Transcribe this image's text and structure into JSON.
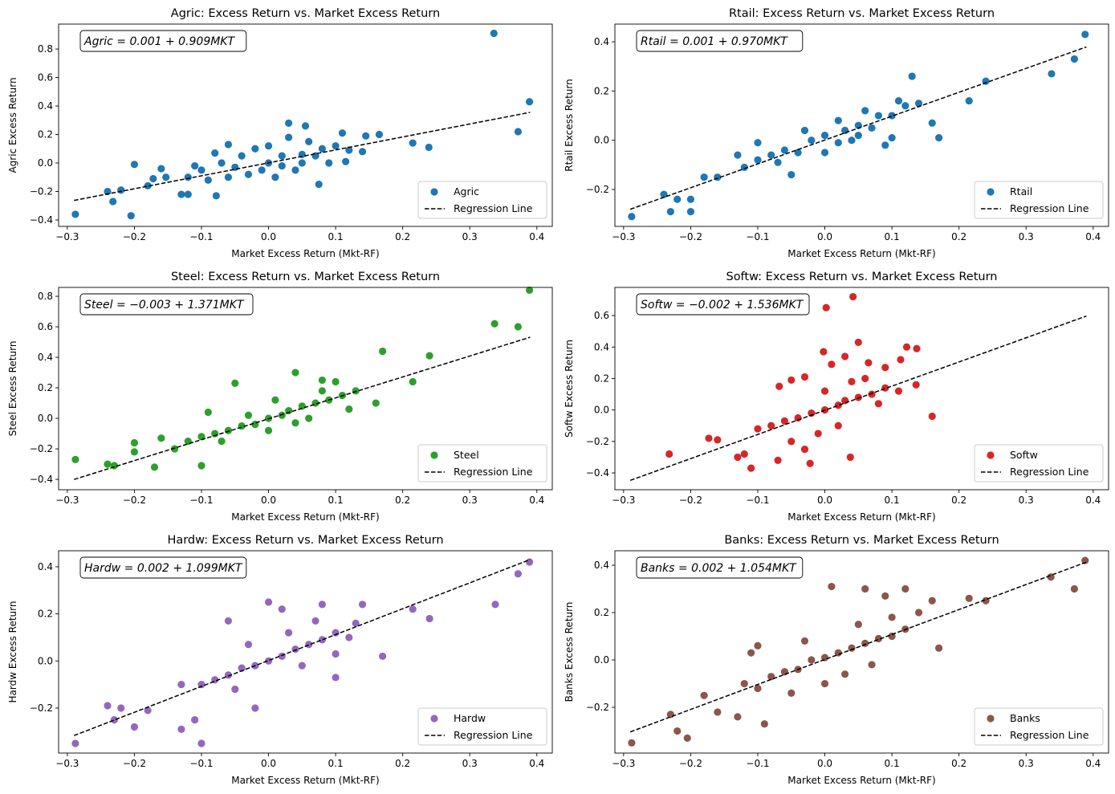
{
  "chart_data": [
    {
      "type": "scatter",
      "title": "Agric: Excess Return vs. Market Excess Return",
      "xlabel": "Market Excess Return (Mkt-RF)",
      "ylabel": "Agric Excess Return",
      "equation": "Agric = 0.001 + 0.909MKT",
      "series_name": "Agric",
      "line_name": "Regression Line",
      "color": "#1f77b4",
      "intercept": 0.001,
      "slope": 0.909,
      "xlim": [
        -0.313,
        0.423
      ],
      "ylim": [
        -0.445,
        0.975
      ],
      "xticks": [
        -0.3,
        -0.2,
        -0.1,
        0.0,
        0.1,
        0.2,
        0.3,
        0.4
      ],
      "yticks": [
        -0.4,
        -0.2,
        0.0,
        0.2,
        0.4,
        0.6,
        0.8
      ],
      "legend": "lower-right",
      "points": [
        [
          0.336,
          0.91
        ],
        [
          0.389,
          0.43
        ],
        [
          0.372,
          0.22
        ],
        [
          0.239,
          0.11
        ],
        [
          0.215,
          0.14
        ],
        [
          -0.288,
          -0.36
        ],
        [
          -0.205,
          -0.37
        ],
        [
          -0.232,
          -0.27
        ],
        [
          -0.24,
          -0.2
        ],
        [
          -0.22,
          -0.19
        ],
        [
          -0.2,
          -0.01
        ],
        [
          -0.18,
          -0.16
        ],
        [
          -0.172,
          -0.11
        ],
        [
          -0.16,
          -0.04
        ],
        [
          -0.153,
          -0.1
        ],
        [
          -0.13,
          -0.22
        ],
        [
          -0.12,
          -0.22
        ],
        [
          -0.078,
          -0.23
        ],
        [
          -0.06,
          0.13
        ],
        [
          -0.08,
          0.07
        ],
        [
          0.03,
          0.28
        ],
        [
          0.055,
          0.26
        ],
        [
          0.075,
          -0.15
        ],
        [
          0.115,
          0.01
        ],
        [
          0.145,
          0.19
        ],
        [
          0.165,
          0.2
        ],
        [
          0.11,
          0.21
        ],
        [
          0.14,
          0.08
        ],
        [
          -0.1,
          -0.05
        ],
        [
          -0.05,
          -0.03
        ],
        [
          0,
          0
        ],
        [
          0.02,
          0.05
        ],
        [
          0.05,
          0.06
        ],
        [
          0.08,
          0.1
        ],
        [
          -0.03,
          -0.08
        ],
        [
          0.04,
          -0.05
        ],
        [
          0.06,
          0.15
        ],
        [
          -0.02,
          0.1
        ],
        [
          0.01,
          -0.1
        ],
        [
          0.09,
          0.0
        ],
        [
          -0.12,
          -0.1
        ],
        [
          -0.09,
          -0.12
        ],
        [
          -0.07,
          0.0
        ],
        [
          -0.04,
          0.05
        ],
        [
          0.0,
          0.12
        ],
        [
          0.03,
          0.18
        ],
        [
          0.07,
          0.05
        ],
        [
          0.1,
          0.12
        ],
        [
          0.12,
          0.09
        ],
        [
          -0.01,
          -0.05
        ],
        [
          0.02,
          -0.02
        ],
        [
          0.05,
          0.0
        ],
        [
          -0.11,
          -0.02
        ],
        [
          -0.06,
          -0.1
        ]
      ]
    },
    {
      "type": "scatter",
      "title": "Rtail: Excess Return vs. Market Excess Return",
      "xlabel": "Market Excess Return (Mkt-RF)",
      "ylabel": "Rtail Excess Return",
      "equation": "Rtail = 0.001 + 0.970MKT",
      "series_name": "Rtail",
      "line_name": "Regression Line",
      "color": "#1f77b4",
      "intercept": 0.001,
      "slope": 0.97,
      "xlim": [
        -0.313,
        0.423
      ],
      "ylim": [
        -0.35,
        0.472
      ],
      "xticks": [
        -0.3,
        -0.2,
        -0.1,
        0.0,
        0.1,
        0.2,
        0.3,
        0.4
      ],
      "yticks": [
        -0.2,
        0.0,
        0.2,
        0.4
      ],
      "legend": "lower-right",
      "points": [
        [
          0.388,
          0.43
        ],
        [
          0.372,
          0.33
        ],
        [
          0.338,
          0.27
        ],
        [
          0.24,
          0.24
        ],
        [
          0.215,
          0.16
        ],
        [
          0.17,
          0.01
        ],
        [
          0.16,
          0.07
        ],
        [
          0.14,
          0.15
        ],
        [
          0.13,
          0.26
        ],
        [
          -0.288,
          -0.31
        ],
        [
          -0.24,
          -0.22
        ],
        [
          -0.23,
          -0.29
        ],
        [
          -0.22,
          -0.24
        ],
        [
          -0.2,
          -0.29
        ],
        [
          -0.2,
          -0.24
        ],
        [
          -0.18,
          -0.15
        ],
        [
          -0.16,
          -0.15
        ],
        [
          -0.13,
          -0.06
        ],
        [
          -0.1,
          -0.01
        ],
        [
          -0.05,
          -0.14
        ],
        [
          0.09,
          -0.02
        ],
        [
          0.1,
          0.01
        ],
        [
          -0.12,
          -0.11
        ],
        [
          -0.1,
          -0.08
        ],
        [
          -0.08,
          -0.06
        ],
        [
          -0.06,
          -0.04
        ],
        [
          -0.04,
          -0.05
        ],
        [
          -0.02,
          0.0
        ],
        [
          0,
          0.02
        ],
        [
          0.02,
          -0.01
        ],
        [
          0.03,
          0.04
        ],
        [
          0.05,
          0.06
        ],
        [
          0.07,
          0.05
        ],
        [
          0.08,
          0.1
        ],
        [
          0.1,
          0.1
        ],
        [
          0.12,
          0.14
        ],
        [
          0.06,
          0.12
        ],
        [
          0.04,
          0.0
        ],
        [
          -0.03,
          0.04
        ],
        [
          0.0,
          -0.05
        ],
        [
          0.02,
          0.08
        ],
        [
          0.11,
          0.16
        ],
        [
          -0.07,
          -0.09
        ],
        [
          0.05,
          0.02
        ]
      ]
    },
    {
      "type": "scatter",
      "title": "Steel: Excess Return vs. Market Excess Return",
      "xlabel": "Market Excess Return (Mkt-RF)",
      "ylabel": "Steel Excess Return",
      "equation": "Steel = −0.003 + 1.371MKT",
      "series_name": "Steel",
      "line_name": "Regression Line",
      "color": "#2ca02c",
      "intercept": -0.003,
      "slope": 1.371,
      "xlim": [
        -0.313,
        0.423
      ],
      "ylim": [
        -0.468,
        0.858
      ],
      "xticks": [
        -0.3,
        -0.2,
        -0.1,
        0.0,
        0.1,
        0.2,
        0.3,
        0.4
      ],
      "yticks": [
        -0.4,
        -0.2,
        0.0,
        0.2,
        0.4,
        0.6,
        0.8
      ],
      "legend": "lower-right",
      "points": [
        [
          0.389,
          0.84
        ],
        [
          0.337,
          0.62
        ],
        [
          0.372,
          0.6
        ],
        [
          0.24,
          0.41
        ],
        [
          0.215,
          0.24
        ],
        [
          0.17,
          0.44
        ],
        [
          0.16,
          0.1
        ],
        [
          -0.288,
          -0.27
        ],
        [
          -0.24,
          -0.3
        ],
        [
          -0.23,
          -0.31
        ],
        [
          -0.2,
          -0.16
        ],
        [
          -0.2,
          -0.22
        ],
        [
          -0.17,
          -0.32
        ],
        [
          -0.16,
          -0.13
        ],
        [
          -0.1,
          -0.31
        ],
        [
          -0.09,
          0.04
        ],
        [
          0.04,
          0.3
        ],
        [
          -0.05,
          0.23
        ],
        [
          0.08,
          0.25
        ],
        [
          0.1,
          0.24
        ],
        [
          -0.14,
          -0.2
        ],
        [
          -0.12,
          -0.15
        ],
        [
          -0.1,
          -0.12
        ],
        [
          -0.08,
          -0.1
        ],
        [
          -0.06,
          -0.08
        ],
        [
          -0.04,
          -0.05
        ],
        [
          -0.02,
          -0.04
        ],
        [
          0,
          0.0
        ],
        [
          0.02,
          0.02
        ],
        [
          0.03,
          0.05
        ],
        [
          0.05,
          0.08
        ],
        [
          0.07,
          0.1
        ],
        [
          0.09,
          0.12
        ],
        [
          0.11,
          0.15
        ],
        [
          0.13,
          0.18
        ],
        [
          0.06,
          0.0
        ],
        [
          0.04,
          -0.03
        ],
        [
          -0.03,
          0.02
        ],
        [
          0.01,
          0.12
        ],
        [
          0.08,
          0.18
        ],
        [
          0.12,
          0.06
        ],
        [
          -0.07,
          -0.15
        ],
        [
          0.0,
          -0.08
        ]
      ]
    },
    {
      "type": "scatter",
      "title": "Softw: Excess Return vs. Market Excess Return",
      "xlabel": "Market Excess Return (Mkt-RF)",
      "ylabel": "Softw Excess Return",
      "equation": "Softw = −0.002 + 1.536MKT",
      "series_name": "Softw",
      "line_name": "Regression Line",
      "color": "#d62728",
      "intercept": -0.002,
      "slope": 1.536,
      "xlim": [
        -0.313,
        0.423
      ],
      "ylim": [
        -0.507,
        0.779
      ],
      "xticks": [
        -0.3,
        -0.2,
        -0.1,
        0.0,
        0.1,
        0.2,
        0.3,
        0.4
      ],
      "yticks": [
        -0.4,
        -0.2,
        0.0,
        0.2,
        0.4,
        0.6
      ],
      "legend": "lower-right",
      "points": [
        [
          0.042,
          0.72
        ],
        [
          0.002,
          0.65
        ],
        [
          0.05,
          0.43
        ],
        [
          -0.002,
          0.37
        ],
        [
          0.03,
          0.34
        ],
        [
          0.122,
          0.4
        ],
        [
          0.137,
          0.39
        ],
        [
          0.113,
          0.32
        ],
        [
          0.16,
          -0.04
        ],
        [
          0.136,
          0.16
        ],
        [
          -0.232,
          -0.28
        ],
        [
          -0.173,
          -0.18
        ],
        [
          -0.16,
          -0.19
        ],
        [
          -0.11,
          -0.37
        ],
        [
          -0.13,
          -0.3
        ],
        [
          -0.12,
          -0.28
        ],
        [
          -0.07,
          -0.32
        ],
        [
          -0.022,
          -0.34
        ],
        [
          0.038,
          -0.3
        ],
        [
          -0.068,
          0.15
        ],
        [
          -0.03,
          0.21
        ],
        [
          -0.05,
          0.19
        ],
        [
          0.01,
          0.29
        ],
        [
          0.065,
          0.3
        ],
        [
          0.09,
          0.27
        ],
        [
          -0.1,
          -0.12
        ],
        [
          -0.08,
          -0.1
        ],
        [
          -0.06,
          -0.07
        ],
        [
          -0.04,
          -0.05
        ],
        [
          -0.02,
          -0.02
        ],
        [
          0,
          0.0
        ],
        [
          0.02,
          0.03
        ],
        [
          0.03,
          0.06
        ],
        [
          0.05,
          0.08
        ],
        [
          0.07,
          0.1
        ],
        [
          0.09,
          0.14
        ],
        [
          0.11,
          0.12
        ],
        [
          0.04,
          0.18
        ],
        [
          0.06,
          0.2
        ],
        [
          -0.01,
          -0.15
        ],
        [
          0.02,
          -0.1
        ],
        [
          -0.05,
          -0.2
        ],
        [
          0.08,
          0.04
        ],
        [
          0.0,
          0.12
        ],
        [
          -0.03,
          -0.25
        ]
      ]
    },
    {
      "type": "scatter",
      "title": "Hardw: Excess Return vs. Market Excess Return",
      "xlabel": "Market Excess Return (Mkt-RF)",
      "ylabel": "Hardw Excess Return",
      "equation": "Hardw = 0.002 + 1.099MKT",
      "series_name": "Hardw",
      "line_name": "Regression Line",
      "color": "#9467bd",
      "intercept": 0.002,
      "slope": 1.099,
      "xlim": [
        -0.313,
        0.423
      ],
      "ylim": [
        -0.391,
        0.468
      ],
      "xticks": [
        -0.3,
        -0.2,
        -0.1,
        0.0,
        0.1,
        0.2,
        0.3,
        0.4
      ],
      "yticks": [
        -0.2,
        0.0,
        0.2,
        0.4
      ],
      "legend": "lower-right",
      "points": [
        [
          0.389,
          0.42
        ],
        [
          0.372,
          0.37
        ],
        [
          0.338,
          0.24
        ],
        [
          0.24,
          0.18
        ],
        [
          0.215,
          0.22
        ],
        [
          0.17,
          0.02
        ],
        [
          0.14,
          0.24
        ],
        [
          -0.288,
          -0.35
        ],
        [
          -0.24,
          -0.19
        ],
        [
          -0.22,
          -0.2
        ],
        [
          -0.23,
          -0.25
        ],
        [
          -0.2,
          -0.28
        ],
        [
          -0.18,
          -0.21
        ],
        [
          -0.13,
          -0.29
        ],
        [
          -0.1,
          -0.35
        ],
        [
          -0.11,
          -0.25
        ],
        [
          -0.02,
          -0.2
        ],
        [
          -0.06,
          0.17
        ],
        [
          0.0,
          0.25
        ],
        [
          0.02,
          0.22
        ],
        [
          0.08,
          0.24
        ],
        [
          0.1,
          -0.07
        ],
        [
          -0.13,
          -0.1
        ],
        [
          -0.1,
          -0.1
        ],
        [
          -0.08,
          -0.08
        ],
        [
          -0.06,
          -0.06
        ],
        [
          -0.04,
          -0.03
        ],
        [
          -0.02,
          -0.02
        ],
        [
          0,
          0.0
        ],
        [
          0.02,
          0.02
        ],
        [
          0.04,
          0.05
        ],
        [
          0.06,
          0.07
        ],
        [
          0.08,
          0.09
        ],
        [
          0.1,
          0.12
        ],
        [
          0.12,
          0.1
        ],
        [
          0.05,
          -0.02
        ],
        [
          0.03,
          0.12
        ],
        [
          -0.03,
          0.07
        ],
        [
          0.07,
          0.17
        ],
        [
          -0.05,
          -0.12
        ],
        [
          0.1,
          0.03
        ],
        [
          0.13,
          0.16
        ]
      ]
    },
    {
      "type": "scatter",
      "title": "Banks: Excess Return vs. Market Excess Return",
      "xlabel": "Market Excess Return (Mkt-RF)",
      "ylabel": "Banks Excess Return",
      "equation": "Banks = 0.002 + 1.054MKT",
      "series_name": "Banks",
      "line_name": "Regression Line",
      "color": "#8c564b",
      "intercept": 0.002,
      "slope": 1.054,
      "xlim": [
        -0.313,
        0.423
      ],
      "ylim": [
        -0.393,
        0.461
      ],
      "xticks": [
        -0.3,
        -0.2,
        -0.1,
        0.0,
        0.1,
        0.2,
        0.3,
        0.4
      ],
      "yticks": [
        -0.2,
        0.0,
        0.2,
        0.4
      ],
      "legend": "lower-right",
      "points": [
        [
          0.388,
          0.42
        ],
        [
          0.337,
          0.35
        ],
        [
          0.372,
          0.3
        ],
        [
          0.24,
          0.25
        ],
        [
          0.215,
          0.26
        ],
        [
          0.17,
          0.05
        ],
        [
          0.16,
          0.25
        ],
        [
          -0.288,
          -0.35
        ],
        [
          -0.23,
          -0.23
        ],
        [
          -0.22,
          -0.3
        ],
        [
          -0.205,
          -0.33
        ],
        [
          -0.18,
          -0.15
        ],
        [
          -0.16,
          -0.22
        ],
        [
          -0.13,
          -0.24
        ],
        [
          -0.09,
          -0.27
        ],
        [
          -0.1,
          0.06
        ],
        [
          -0.11,
          0.03
        ],
        [
          0.01,
          0.31
        ],
        [
          0.09,
          0.27
        ],
        [
          0.12,
          0.3
        ],
        [
          0.06,
          0.3
        ],
        [
          0.14,
          0.2
        ],
        [
          -0.12,
          -0.1
        ],
        [
          -0.1,
          -0.12
        ],
        [
          -0.08,
          -0.07
        ],
        [
          -0.06,
          -0.05
        ],
        [
          -0.04,
          -0.04
        ],
        [
          -0.02,
          0.0
        ],
        [
          0,
          0.01
        ],
        [
          0.02,
          0.03
        ],
        [
          0.04,
          0.05
        ],
        [
          0.06,
          0.07
        ],
        [
          0.08,
          0.09
        ],
        [
          0.1,
          0.1
        ],
        [
          0.12,
          0.13
        ],
        [
          0.03,
          -0.06
        ],
        [
          0.05,
          0.15
        ],
        [
          -0.03,
          0.08
        ],
        [
          0.07,
          -0.02
        ],
        [
          -0.05,
          -0.14
        ],
        [
          0.1,
          0.18
        ],
        [
          0.0,
          -0.1
        ]
      ]
    }
  ]
}
